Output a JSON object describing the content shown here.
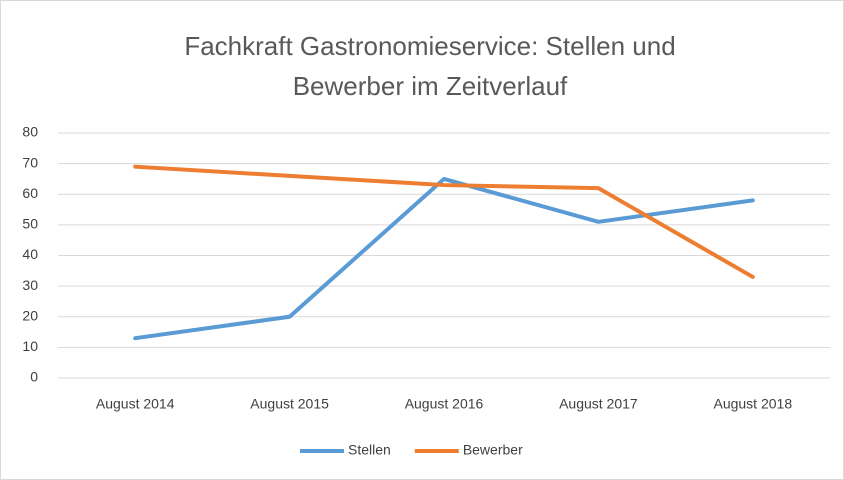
{
  "chart_data": {
    "type": "line",
    "title": "Fachkraft Gastronomieservice: Stellen und Bewerber im Zeitverlauf",
    "categories": [
      "August 2014",
      "August 2015",
      "August 2016",
      "August 2017",
      "August 2018"
    ],
    "series": [
      {
        "name": "Stellen",
        "color": "#5b9bd5",
        "values": [
          13,
          20,
          65,
          51,
          58
        ]
      },
      {
        "name": "Bewerber",
        "color": "#ed7d31",
        "values": [
          69,
          66,
          63,
          62,
          33
        ]
      }
    ],
    "ylim": [
      0,
      80
    ],
    "yticks": [
      0,
      10,
      20,
      30,
      40,
      50,
      60,
      70,
      80
    ],
    "grid": true,
    "legend": "bottom"
  }
}
